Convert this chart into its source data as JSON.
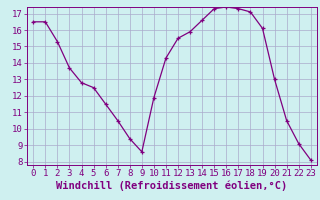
{
  "x": [
    0,
    1,
    2,
    3,
    4,
    5,
    6,
    7,
    8,
    9,
    10,
    11,
    12,
    13,
    14,
    15,
    16,
    17,
    18,
    19,
    20,
    21,
    22,
    23
  ],
  "y": [
    16.5,
    16.5,
    15.3,
    13.7,
    12.8,
    12.5,
    11.5,
    10.5,
    9.4,
    8.6,
    11.9,
    14.3,
    15.5,
    15.9,
    16.6,
    17.3,
    17.4,
    17.3,
    17.1,
    16.1,
    13.0,
    10.5,
    9.1,
    8.1
  ],
  "line_color": "#800080",
  "marker": "+",
  "marker_size": 3,
  "bg_color": "#cff0f0",
  "grid_color": "#aaaacc",
  "xlabel": "Windchill (Refroidissement éolien,°C)",
  "xlim": [
    -0.5,
    23.5
  ],
  "ylim": [
    7.8,
    17.4
  ],
  "yticks": [
    8,
    9,
    10,
    11,
    12,
    13,
    14,
    15,
    16,
    17
  ],
  "xticks": [
    0,
    1,
    2,
    3,
    4,
    5,
    6,
    7,
    8,
    9,
    10,
    11,
    12,
    13,
    14,
    15,
    16,
    17,
    18,
    19,
    20,
    21,
    22,
    23
  ],
  "tick_fontsize": 6.5,
  "xlabel_fontsize": 7.5
}
